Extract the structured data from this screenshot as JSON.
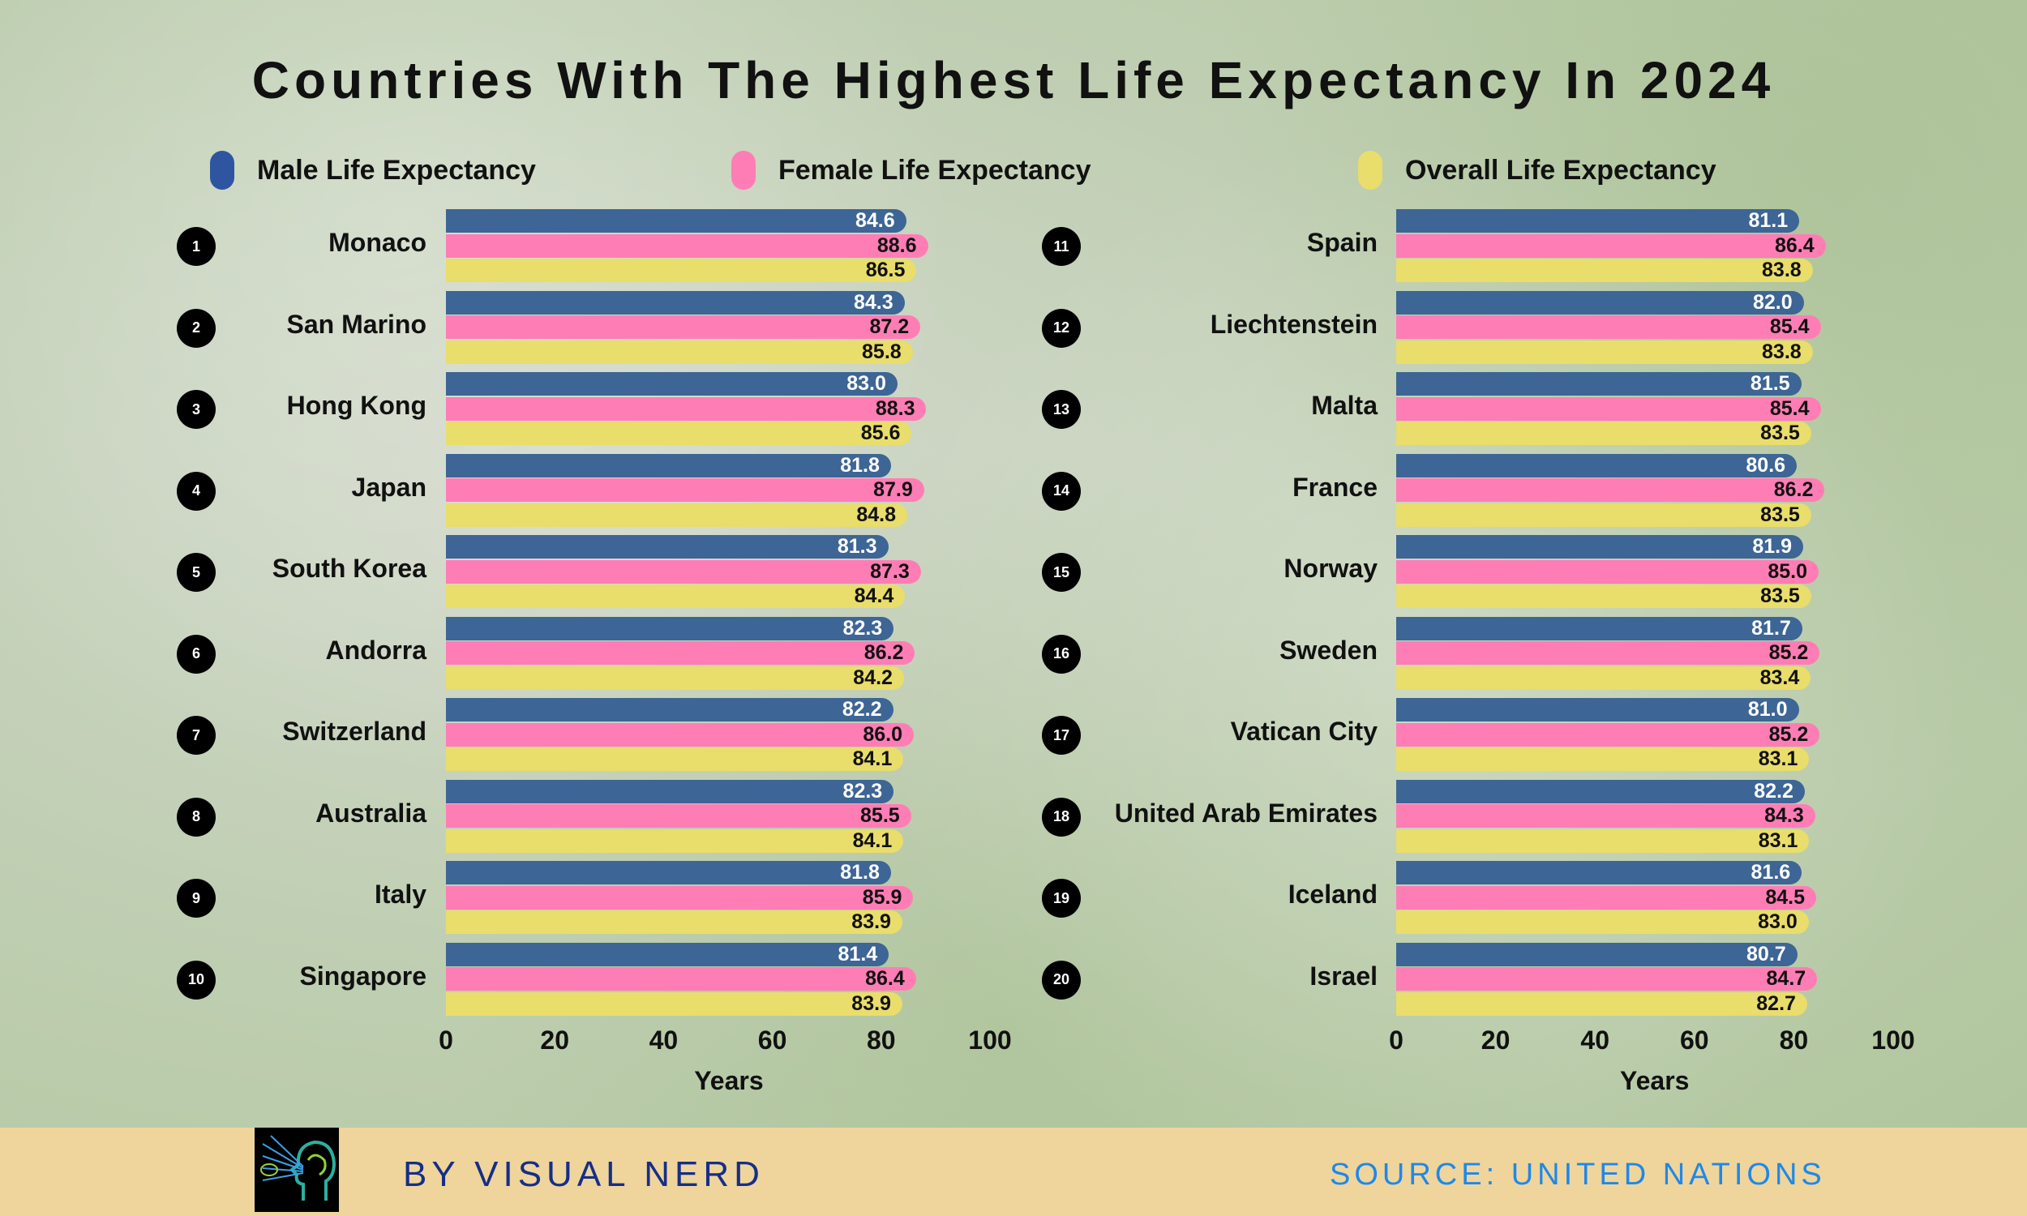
{
  "title": "Countries With The Highest Life Expectancy In 2024",
  "footer": {
    "byline": "BY VISUAL NERD",
    "source": "SOURCE: UNITED NATIONS"
  },
  "colors": {
    "male": "#3d6595",
    "female": "#ff7db5",
    "overall": "#e9dd6b"
  },
  "chart_data": {
    "type": "bar",
    "orientation": "horizontal",
    "title": "Countries With The Highest Life Expectancy In 2024",
    "xlabel": "Years",
    "xlim": [
      0,
      100
    ],
    "xticks": [
      "0",
      "20",
      "40",
      "60",
      "80",
      "100"
    ],
    "legend": {
      "placement": "top",
      "entries": [
        "Male Life Expectancy",
        "Female Life Expectancy",
        "Overall Life Expectancy"
      ]
    },
    "panels": [
      {
        "ranks": [
          "1",
          "2",
          "3",
          "4",
          "5",
          "6",
          "7",
          "8",
          "9",
          "10"
        ],
        "categories": [
          "Monaco",
          "San Marino",
          "Hong Kong",
          "Japan",
          "South Korea",
          "Andorra",
          "Switzerland",
          "Australia",
          "Italy",
          "Singapore"
        ],
        "series": [
          {
            "name": "Male Life Expectancy",
            "values": [
              84.6,
              84.3,
              83.0,
              81.8,
              81.3,
              82.3,
              82.2,
              82.3,
              81.8,
              81.4
            ]
          },
          {
            "name": "Female Life Expectancy",
            "values": [
              88.6,
              87.2,
              88.3,
              87.9,
              87.3,
              86.2,
              86.0,
              85.5,
              85.9,
              86.4
            ]
          },
          {
            "name": "Overall Life Expectancy",
            "values": [
              86.5,
              85.8,
              85.6,
              84.8,
              84.4,
              84.2,
              84.1,
              84.1,
              83.9,
              83.9
            ]
          }
        ]
      },
      {
        "ranks": [
          "11",
          "12",
          "13",
          "14",
          "15",
          "16",
          "17",
          "18",
          "19",
          "20"
        ],
        "categories": [
          "Spain",
          "Liechtenstein",
          "Malta",
          "France",
          "Norway",
          "Sweden",
          "Vatican City",
          "United Arab Emirates",
          "Iceland",
          "Israel"
        ],
        "series": [
          {
            "name": "Male Life Expectancy",
            "values": [
              81.1,
              82.0,
              81.5,
              80.6,
              81.9,
              81.7,
              81.0,
              82.2,
              81.6,
              80.7
            ]
          },
          {
            "name": "Female Life Expectancy",
            "values": [
              86.4,
              85.4,
              85.4,
              86.2,
              85.0,
              85.2,
              85.2,
              84.3,
              84.5,
              84.7
            ]
          },
          {
            "name": "Overall Life Expectancy",
            "values": [
              83.8,
              83.8,
              83.5,
              83.5,
              83.5,
              83.4,
              83.1,
              83.1,
              83.0,
              82.7
            ]
          }
        ]
      }
    ]
  }
}
